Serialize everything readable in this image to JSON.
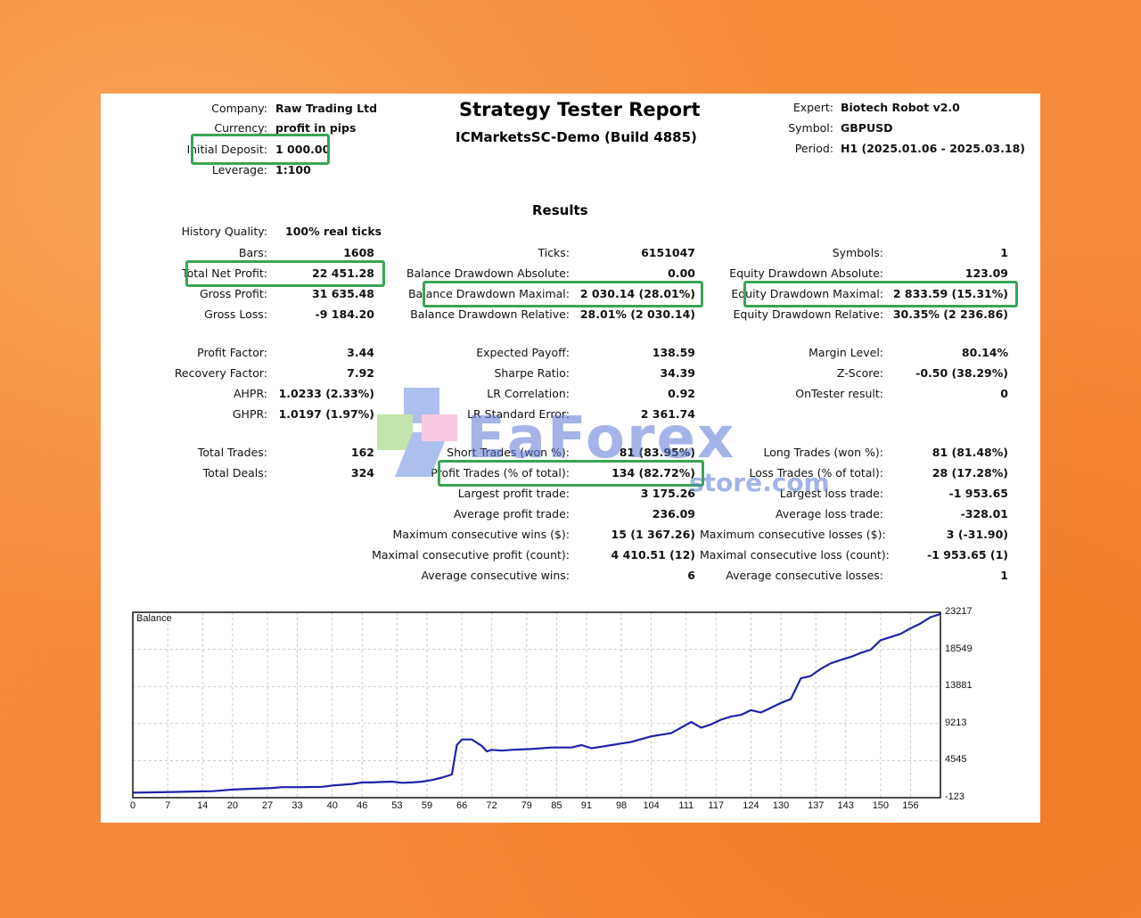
{
  "header": {
    "company_label": "Company:",
    "company": "Raw Trading Ltd",
    "currency_label": "Currency:",
    "currency": "profit in pips",
    "initial_deposit_label": "Initial Deposit:",
    "initial_deposit": "1 000.00",
    "leverage_label": "Leverage:",
    "leverage": "1:100",
    "title": "Strategy Tester Report",
    "server": "ICMarketsSC-Demo (Build 4885)",
    "expert_label": "Expert:",
    "expert": "Biotech Robot v2.0",
    "symbol_label": "Symbol:",
    "symbol": "GBPUSD",
    "period_label": "Period:",
    "period": "H1 (2025.01.06 - 2025.03.18)"
  },
  "results_title": "Results",
  "history_quality_label": "History Quality:",
  "history_quality": "100% real ticks",
  "col1": [
    {
      "label": "Bars:",
      "value": "1608"
    },
    {
      "label": "Total Net Profit:",
      "value": "22 451.28"
    },
    {
      "label": "Gross Profit:",
      "value": "31 635.48"
    },
    {
      "label": "Gross Loss:",
      "value": "-9 184.20"
    },
    {
      "label": "Profit Factor:",
      "value": "3.44"
    },
    {
      "label": "Recovery Factor:",
      "value": "7.92"
    },
    {
      "label": "AHPR:",
      "value": "1.0233 (2.33%)"
    },
    {
      "label": "GHPR:",
      "value": "1.0197 (1.97%)"
    },
    {
      "label": "Total Trades:",
      "value": "162"
    },
    {
      "label": "Total Deals:",
      "value": "324"
    }
  ],
  "col2": [
    {
      "label": "Ticks:",
      "value": "6151047"
    },
    {
      "label": "Balance Drawdown Absolute:",
      "value": "0.00"
    },
    {
      "label": "Balance Drawdown Maximal:",
      "value": "2 030.14 (28.01%)"
    },
    {
      "label": "Balance Drawdown Relative:",
      "value": "28.01% (2 030.14)"
    },
    {
      "label": "Expected Payoff:",
      "value": "138.59"
    },
    {
      "label": "Sharpe Ratio:",
      "value": "34.39"
    },
    {
      "label": "LR Correlation:",
      "value": "0.92"
    },
    {
      "label": "LR Standard Error:",
      "value": "2 361.74"
    },
    {
      "label": "Short Trades (won %):",
      "value": "81 (83.95%)"
    },
    {
      "label": "Profit Trades (% of total):",
      "value": "134 (82.72%)"
    },
    {
      "label": "Largest profit trade:",
      "value": "3 175.26"
    },
    {
      "label": "Average profit trade:",
      "value": "236.09"
    },
    {
      "label": "Maximum consecutive wins ($):",
      "value": "15 (1 367.26)"
    },
    {
      "label": "Maximal consecutive profit (count):",
      "value": "4 410.51 (12)"
    },
    {
      "label": "Average consecutive wins:",
      "value": "6"
    }
  ],
  "col3": [
    {
      "label": "Symbols:",
      "value": "1"
    },
    {
      "label": "Equity Drawdown Absolute:",
      "value": "123.09"
    },
    {
      "label": "Equity Drawdown Maximal:",
      "value": "2 833.59 (15.31%)"
    },
    {
      "label": "Equity Drawdown Relative:",
      "value": "30.35% (2 236.86)"
    },
    {
      "label": "Margin Level:",
      "value": "80.14%"
    },
    {
      "label": "Z-Score:",
      "value": "-0.50 (38.29%)"
    },
    {
      "label": "OnTester result:",
      "value": "0"
    },
    {
      "label": "Long Trades (won %):",
      "value": "81 (81.48%)"
    },
    {
      "label": "Loss Trades (% of total):",
      "value": "28 (17.28%)"
    },
    {
      "label": "Largest loss trade:",
      "value": "-1 953.65"
    },
    {
      "label": "Average loss trade:",
      "value": "-328.01"
    },
    {
      "label": "Maximum consecutive losses ($):",
      "value": "3 (-31.90)"
    },
    {
      "label": "Maximal consecutive loss (count):",
      "value": "-1 953.65 (1)"
    },
    {
      "label": "Average consecutive losses:",
      "value": "1"
    }
  ],
  "watermark": {
    "brand": "EaForex",
    "sub": "store.com"
  },
  "colors": {
    "highlight": "#3aa455",
    "line": "#1e22a8",
    "grid": "#c8c8c8"
  },
  "chart_data": {
    "type": "line",
    "title": "Balance",
    "x_ticks": [
      "0",
      "7",
      "14",
      "20",
      "27",
      "33",
      "40",
      "46",
      "53",
      "59",
      "66",
      "72",
      "79",
      "85",
      "91",
      "98",
      "104",
      "111",
      "117",
      "124",
      "130",
      "137",
      "143",
      "150",
      "156"
    ],
    "y_ticks": [
      "23217",
      "18549",
      "13881",
      "9213",
      "4545",
      "-123"
    ],
    "xlim": [
      0,
      162
    ],
    "ylim": [
      -123,
      23217
    ],
    "series": [
      {
        "x": [
          0,
          4,
          8,
          12,
          16,
          18,
          20,
          24,
          28,
          30,
          34,
          38,
          40,
          44,
          46,
          48,
          50,
          52,
          54,
          56,
          58,
          60,
          62,
          64,
          65,
          66,
          68,
          70,
          71,
          72,
          74,
          76,
          80,
          84,
          88,
          90,
          92,
          94,
          96,
          98,
          100,
          104,
          108,
          112,
          114,
          116,
          118,
          120,
          122,
          124,
          126,
          128,
          130,
          132,
          134,
          136,
          138,
          140,
          142,
          144,
          146,
          148,
          150,
          152,
          154,
          156,
          158,
          160,
          162
        ],
        "y": [
          500,
          550,
          600,
          650,
          700,
          800,
          900,
          1000,
          1100,
          1200,
          1200,
          1250,
          1400,
          1600,
          1800,
          1800,
          1850,
          1900,
          1750,
          1800,
          1900,
          2100,
          2400,
          2800,
          6500,
          7200,
          7200,
          6400,
          5700,
          5900,
          5800,
          5900,
          6000,
          6200,
          6200,
          6500,
          6100,
          6300,
          6500,
          6700,
          6900,
          7600,
          8000,
          9400,
          8700,
          9100,
          9700,
          10100,
          10300,
          10900,
          10600,
          11200,
          11800,
          12300,
          14900,
          15200,
          16100,
          16800,
          17200,
          17600,
          18100,
          18500,
          19700,
          20100,
          20500,
          21200,
          21800,
          22600,
          23000
        ]
      }
    ]
  }
}
